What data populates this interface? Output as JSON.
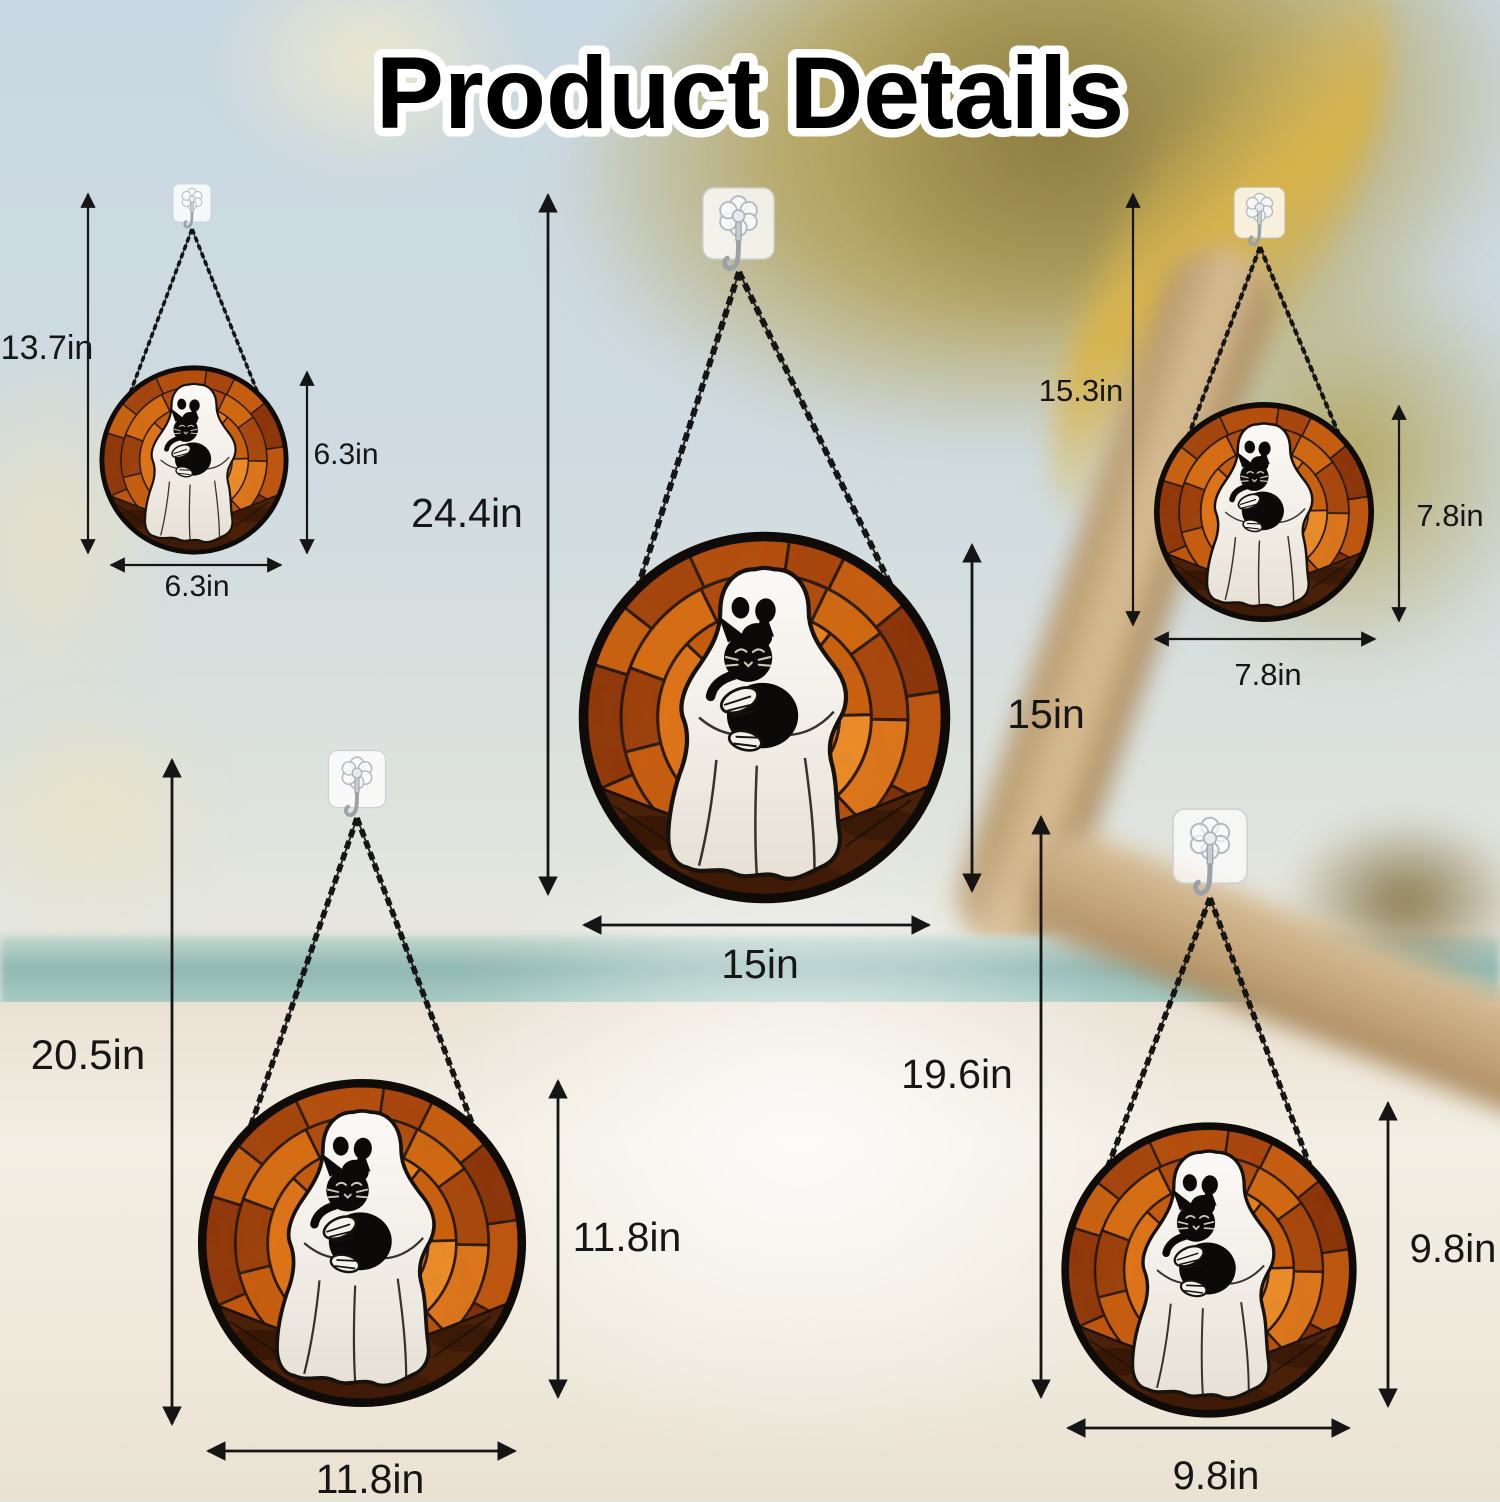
{
  "title": "Product Details",
  "colors": {
    "glass_orange": "#d4680f",
    "glass_deep_red": "#8a3007",
    "glass_inner": "#e87d16",
    "lead_line": "#241409",
    "ghost_white": "#f4f1ec",
    "chain_black": "#1a1a1a",
    "label_text": "#161616",
    "ground_brown": "#4a2008"
  },
  "icons": {
    "hook": "adhesive-wall-hook-icon",
    "chain": "hanging-chain-icon",
    "arrow": "double-headed-measure-arrow-icon",
    "artwork": "ghost-holding-black-cat-stained-glass"
  },
  "ornaments": [
    {
      "position": "top-left",
      "hanging_height": "13.7in",
      "panel_height": "6.3in",
      "panel_width": "6.3in"
    },
    {
      "position": "center",
      "hanging_height": "24.4in",
      "panel_height": "15in",
      "panel_width": "15in"
    },
    {
      "position": "top-right",
      "hanging_height": "15.3in",
      "panel_height": "7.8in",
      "panel_width": "7.8in"
    },
    {
      "position": "bottom-left",
      "hanging_height": "20.5in",
      "panel_height": "11.8in",
      "panel_width": "11.8in"
    },
    {
      "position": "bottom-right",
      "hanging_height": "19.6in",
      "panel_height": "9.8in",
      "panel_width": "9.8in"
    }
  ]
}
